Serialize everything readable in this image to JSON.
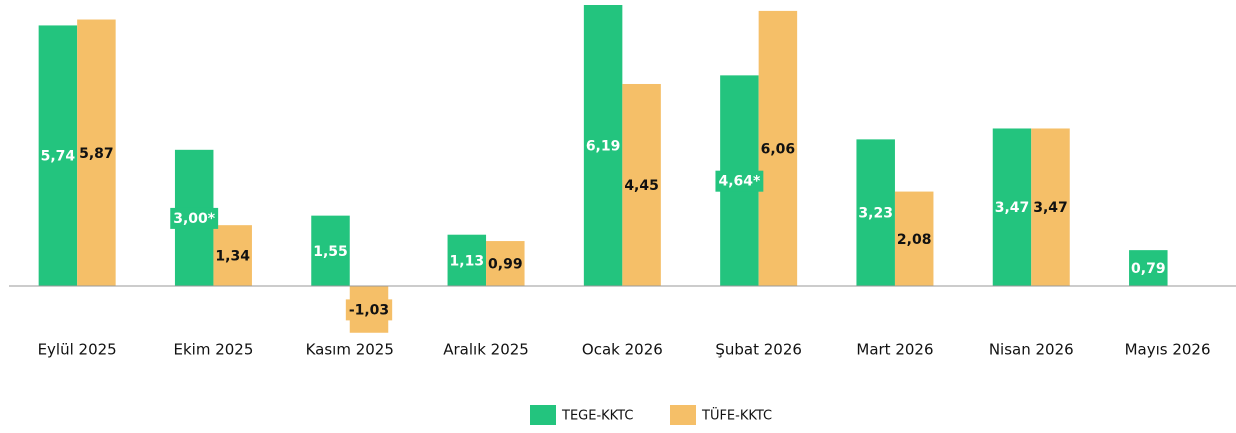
{
  "chart_data": {
    "type": "bar",
    "categories": [
      "Eylül 2025",
      "Ekim 2025",
      "Kasım 2025",
      "Aralık 2025",
      "Ocak 2026",
      "Şubat 2026",
      "Mart 2026",
      "Nisan 2026",
      "Mayıs 2026"
    ],
    "series": [
      {
        "name": "TEGE-KKTC",
        "color": "#23c47e",
        "values": [
          5.74,
          3.0,
          1.55,
          1.13,
          6.19,
          4.64,
          3.23,
          3.47,
          0.79
        ],
        "value_labels": [
          "5,74",
          "3,00*",
          "1,55",
          "1,13",
          "6,19",
          "4,64*",
          "3,23",
          "3,47",
          "0,79"
        ]
      },
      {
        "name": "TÜFE-KKTC",
        "color": "#f5bf68",
        "values": [
          5.87,
          1.34,
          -1.03,
          0.99,
          4.45,
          6.06,
          2.08,
          3.47,
          null
        ],
        "value_labels": [
          "5,87",
          "1,34",
          "-1,03",
          "0,99",
          "4,45",
          "6,06",
          "2,08",
          "3,47",
          null
        ]
      }
    ]
  }
}
